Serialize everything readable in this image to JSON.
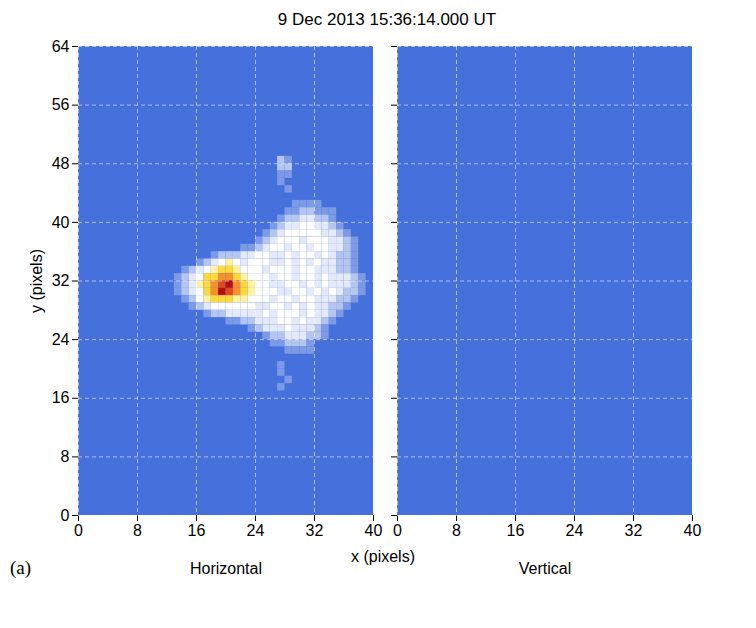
{
  "title": "9 Dec 2013 15:36:14.000 UT",
  "x_label": "x (pixels)",
  "panel_label": "(a)",
  "chart_data": [
    {
      "type": "heatmap",
      "name": "Horizontal",
      "y_label": "y (pixels)",
      "xlim": [
        0,
        40
      ],
      "ylim": [
        0,
        64
      ],
      "xticks": [
        0,
        8,
        16,
        24,
        32,
        40
      ],
      "yticks": [
        0,
        8,
        16,
        24,
        32,
        40,
        48,
        56,
        64
      ],
      "grid": true,
      "tick_labels": true,
      "zlim": [
        1,
        10
      ],
      "background": 1,
      "rows": [
        {
          "y": 48,
          "x": 27,
          "values": [
            3,
            2
          ]
        },
        {
          "y": 47,
          "x": 27,
          "values": [
            3,
            3
          ]
        },
        {
          "y": 46,
          "x": 27,
          "values": [
            2,
            2
          ]
        },
        {
          "y": 45,
          "x": 27,
          "values": [
            2
          ]
        },
        {
          "y": 44,
          "x": 28,
          "values": [
            2
          ]
        },
        {
          "y": 42,
          "x": 29,
          "values": [
            2,
            2,
            2,
            2
          ]
        },
        {
          "y": 41,
          "x": 28,
          "values": [
            2,
            2,
            3,
            3,
            2,
            2,
            2
          ]
        },
        {
          "y": 40,
          "x": 27,
          "values": [
            2,
            3,
            3,
            4,
            4,
            3,
            3,
            2
          ]
        },
        {
          "y": 39,
          "x": 26,
          "values": [
            2,
            3,
            4,
            4,
            5,
            5,
            4,
            4,
            3,
            2
          ]
        },
        {
          "y": 38,
          "x": 25,
          "values": [
            2,
            3,
            4,
            5,
            5,
            5,
            5,
            5,
            4,
            4,
            3,
            2
          ]
        },
        {
          "y": 37,
          "x": 24,
          "values": [
            2,
            3,
            4,
            5,
            5,
            5,
            4,
            5,
            5,
            5,
            4,
            4,
            3,
            2
          ]
        },
        {
          "y": 36,
          "x": 22,
          "values": [
            2,
            2,
            3,
            4,
            5,
            5,
            4,
            5,
            5,
            4,
            5,
            5,
            4,
            4,
            3,
            2
          ]
        },
        {
          "y": 35,
          "x": 18,
          "values": [
            2,
            3,
            3,
            3,
            4,
            4,
            5,
            5,
            4,
            4,
            5,
            4,
            5,
            5,
            4,
            5,
            4,
            3,
            3,
            2
          ]
        },
        {
          "y": 34,
          "x": 16,
          "values": [
            2,
            3,
            4,
            5,
            6,
            5,
            4,
            5,
            5,
            5,
            4,
            4,
            5,
            4,
            5,
            4,
            5,
            4,
            4,
            3,
            3,
            2
          ]
        },
        {
          "y": 33,
          "x": 14,
          "values": [
            2,
            3,
            4,
            5,
            6,
            7,
            7,
            6,
            5,
            5,
            5,
            4,
            5,
            5,
            5,
            4,
            5,
            5,
            4,
            4,
            4,
            3,
            3,
            2
          ]
        },
        {
          "y": 32,
          "x": 13,
          "values": [
            2,
            3,
            4,
            5,
            7,
            7,
            8,
            8,
            7,
            6,
            5,
            5,
            5,
            4,
            5,
            5,
            4,
            5,
            5,
            4,
            5,
            4,
            4,
            4,
            3,
            2
          ]
        },
        {
          "y": 31,
          "x": 13,
          "values": [
            2,
            3,
            4,
            6,
            7,
            8,
            9,
            10,
            8,
            7,
            6,
            5,
            5,
            4,
            4,
            5,
            5,
            4,
            5,
            4,
            5,
            4,
            4,
            4,
            3,
            2
          ]
        },
        {
          "y": 30,
          "x": 13,
          "values": [
            2,
            3,
            4,
            5,
            7,
            8,
            10,
            9,
            8,
            7,
            6,
            5,
            5,
            5,
            4,
            4,
            5,
            5,
            4,
            5,
            4,
            5,
            4,
            3,
            3,
            2
          ]
        },
        {
          "y": 29,
          "x": 14,
          "values": [
            2,
            3,
            5,
            6,
            7,
            7,
            7,
            6,
            6,
            5,
            5,
            5,
            4,
            5,
            5,
            4,
            5,
            5,
            4,
            4,
            4,
            3,
            3,
            2
          ]
        },
        {
          "y": 28,
          "x": 15,
          "values": [
            2,
            3,
            4,
            5,
            5,
            5,
            5,
            5,
            5,
            4,
            4,
            5,
            5,
            4,
            5,
            4,
            5,
            4,
            4,
            3,
            3,
            2
          ]
        },
        {
          "y": 27,
          "x": 17,
          "values": [
            2,
            3,
            3,
            4,
            4,
            4,
            4,
            4,
            5,
            4,
            5,
            5,
            5,
            4,
            5,
            4,
            4,
            3,
            2
          ]
        },
        {
          "y": 26,
          "x": 20,
          "values": [
            2,
            2,
            3,
            3,
            4,
            4,
            4,
            5,
            5,
            4,
            5,
            4,
            4,
            3,
            2
          ]
        },
        {
          "y": 25,
          "x": 23,
          "values": [
            2,
            3,
            4,
            4,
            4,
            5,
            4,
            4,
            4,
            3,
            2
          ]
        },
        {
          "y": 24,
          "x": 25,
          "values": [
            2,
            3,
            3,
            4,
            4,
            4,
            3,
            3,
            2
          ]
        },
        {
          "y": 23,
          "x": 26,
          "values": [
            2,
            2,
            3,
            3,
            3,
            2
          ]
        },
        {
          "y": 22,
          "x": 28,
          "values": [
            2,
            2,
            2,
            2
          ]
        },
        {
          "y": 20,
          "x": 27,
          "values": [
            2
          ]
        },
        {
          "y": 19,
          "x": 27,
          "values": [
            2
          ]
        },
        {
          "y": 18,
          "x": 28,
          "values": [
            2
          ]
        },
        {
          "y": 17,
          "x": 27,
          "values": [
            2
          ]
        }
      ]
    },
    {
      "type": "heatmap",
      "name": "Vertical",
      "xlim": [
        0,
        40
      ],
      "ylim": [
        0,
        64
      ],
      "xticks": [
        0,
        8,
        16,
        24,
        32,
        40
      ],
      "yticks": [
        0,
        8,
        16,
        24,
        32,
        40,
        48,
        56,
        64
      ],
      "grid": true,
      "tick_labels": "x",
      "zlim": [
        1,
        10
      ],
      "background": 1,
      "rows": []
    }
  ]
}
